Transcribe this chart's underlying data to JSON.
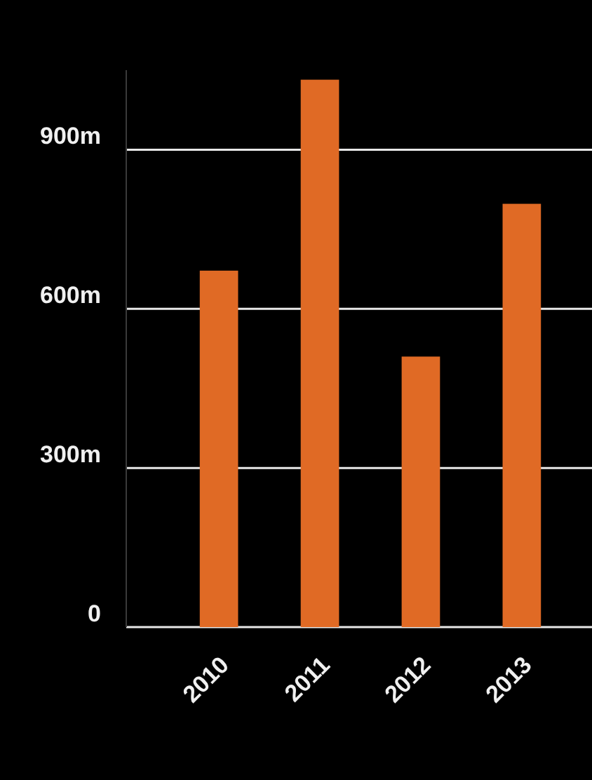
{
  "chart_data": {
    "type": "bar",
    "categories": [
      "2010",
      "2011",
      "2012",
      "2013"
    ],
    "values": [
      672,
      1032,
      510,
      798
    ],
    "color": "#e06a25",
    "ylim": [
      0,
      1050
    ],
    "yticks": [
      {
        "value": 0,
        "label": "0"
      },
      {
        "value": 300,
        "label": "300m"
      },
      {
        "value": 600,
        "label": "600m"
      },
      {
        "value": 900,
        "label": "900m"
      }
    ],
    "grid": "y"
  }
}
